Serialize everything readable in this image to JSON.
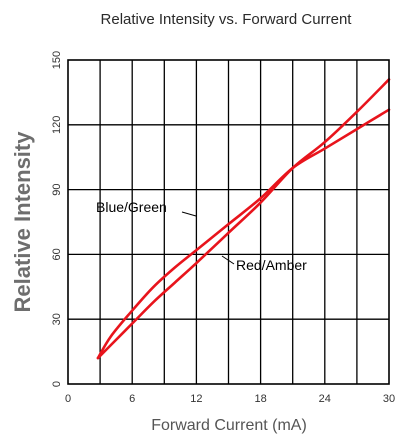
{
  "chart_data": {
    "type": "line",
    "title": "Relative Intensity vs. Forward Current",
    "xlabel": "Forward Current (mA)",
    "ylabel": "Relative Intensity",
    "xlim": [
      0,
      30
    ],
    "ylim": [
      0,
      150
    ],
    "xticks": [
      0,
      6,
      12,
      18,
      24,
      30
    ],
    "yticks": [
      0,
      30,
      60,
      90,
      120,
      150
    ],
    "grid": true,
    "line_color": "#e8141c",
    "series": [
      {
        "name": "Blue/Green",
        "x": [
          2.8,
          4,
          6,
          8,
          10,
          12,
          15,
          18,
          21,
          24,
          27,
          30
        ],
        "y": [
          12,
          22,
          34,
          45,
          54,
          62,
          74,
          86,
          100,
          109,
          118,
          127
        ]
      },
      {
        "name": "Red/Amber",
        "x": [
          2.8,
          4,
          6,
          8,
          10,
          12,
          15,
          18,
          21,
          24,
          27,
          30
        ],
        "y": [
          12,
          18,
          28,
          38,
          47,
          56,
          70,
          84,
          100,
          112,
          126,
          141
        ]
      }
    ]
  }
}
